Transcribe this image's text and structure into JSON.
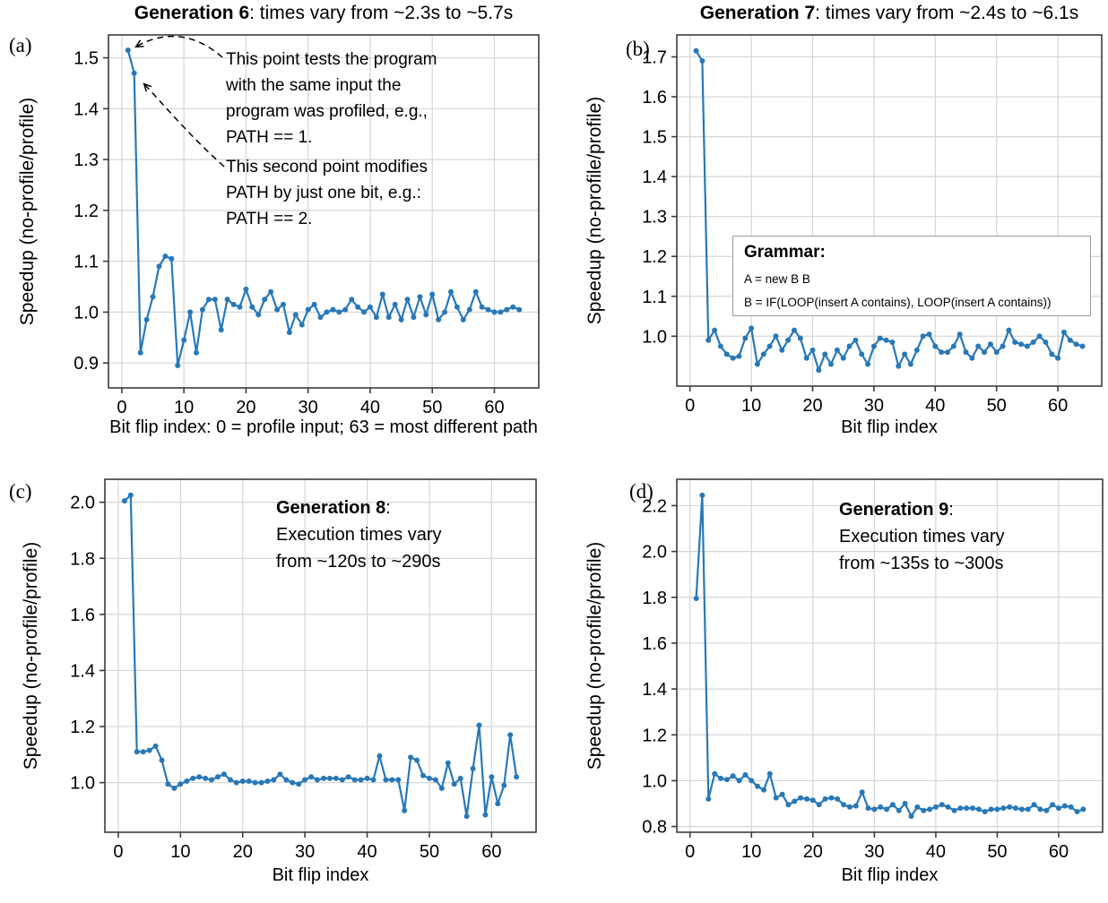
{
  "chart_data": [
    {
      "type": "line",
      "panel": "a",
      "corner_label": "(a)",
      "title_bold": "Generation 6",
      "title_tail": ": times vary from ~2.3s to ~5.7s",
      "xlabel": "Bit flip index: 0 = profile input; 63 = most different path",
      "ylabel": "Speedup (no-profile/profile)",
      "x_range": [
        1,
        64
      ],
      "values": [
        1.515,
        1.47,
        0.92,
        0.985,
        1.03,
        1.09,
        1.11,
        1.105,
        0.895,
        0.945,
        1.0,
        0.92,
        1.005,
        1.025,
        1.025,
        0.965,
        1.025,
        1.015,
        1.01,
        1.045,
        1.01,
        0.995,
        1.025,
        1.04,
        1.005,
        1.015,
        0.96,
        0.995,
        0.975,
        1.005,
        1.015,
        0.99,
        1.0,
        1.005,
        1.0,
        1.005,
        1.025,
        1.01,
        1.0,
        1.01,
        0.99,
        1.035,
        0.99,
        1.015,
        0.985,
        1.025,
        0.99,
        1.03,
        0.995,
        1.035,
        0.985,
        1.0,
        1.04,
        1.01,
        0.985,
        1.005,
        1.04,
        1.01,
        1.005,
        1.0,
        1.0,
        1.005,
        1.01,
        1.005
      ],
      "xlim": [
        -2.15,
        67.15
      ],
      "ylim": [
        0.851,
        1.545
      ],
      "xticks": [
        0,
        10,
        20,
        30,
        40,
        50,
        60
      ],
      "yticks": [
        0.9,
        1.0,
        1.1,
        1.2,
        1.3,
        1.4,
        1.5
      ],
      "grid": true,
      "line_color": "#2878b8",
      "annotations": [
        {
          "text": "This point tests the program\nwith the same input the\nprogram was profiled, e.g.,\nPATH == 1."
        },
        {
          "text": "This second point modifies\nPATH by just one bit, e.g.:\nPATH == 2."
        }
      ]
    },
    {
      "type": "line",
      "panel": "b",
      "corner_label": "(b)",
      "title_bold": "Generation 7",
      "title_tail": ": times vary from ~2.4s to ~6.1s",
      "xlabel": "Bit flip index",
      "ylabel": "Speedup (no-profile/profile)",
      "x_range": [
        1,
        64
      ],
      "values": [
        1.715,
        1.69,
        0.99,
        1.015,
        0.975,
        0.955,
        0.945,
        0.95,
        0.995,
        1.02,
        0.93,
        0.955,
        0.975,
        1.0,
        0.965,
        0.99,
        1.015,
        0.995,
        0.945,
        0.965,
        0.915,
        0.955,
        0.93,
        0.965,
        0.945,
        0.975,
        0.99,
        0.955,
        0.93,
        0.975,
        0.995,
        0.99,
        0.985,
        0.925,
        0.955,
        0.93,
        0.965,
        1.0,
        1.005,
        0.975,
        0.96,
        0.96,
        0.975,
        1.005,
        0.96,
        0.945,
        0.975,
        0.96,
        0.98,
        0.96,
        0.975,
        1.015,
        0.985,
        0.98,
        0.975,
        0.985,
        1.0,
        0.985,
        0.955,
        0.945,
        1.01,
        0.99,
        0.98,
        0.975
      ],
      "xlim": [
        -2.15,
        67.15
      ],
      "ylim": [
        0.875,
        1.755
      ],
      "xticks": [
        0,
        10,
        20,
        30,
        40,
        50,
        60
      ],
      "yticks": [
        1.0,
        1.1,
        1.2,
        1.3,
        1.4,
        1.5,
        1.6,
        1.7
      ],
      "grid": true,
      "line_color": "#2878b8",
      "grammar": {
        "heading": "Grammar:",
        "rules": [
          "A = new B B",
          "B = IF(LOOP(insert A contains), LOOP(insert A contains))"
        ]
      }
    },
    {
      "type": "line",
      "panel": "c",
      "corner_label": "(c)",
      "xlabel": "Bit flip index",
      "ylabel": "Speedup (no-profile/profile)",
      "x_range": [
        1,
        64
      ],
      "values": [
        2.005,
        2.025,
        1.11,
        1.11,
        1.115,
        1.13,
        1.08,
        0.995,
        0.98,
        0.995,
        1.005,
        1.015,
        1.02,
        1.015,
        1.01,
        1.02,
        1.03,
        1.01,
        1.0,
        1.005,
        1.005,
        1.0,
        1.0,
        1.005,
        1.01,
        1.03,
        1.01,
        1.0,
        0.995,
        1.01,
        1.02,
        1.01,
        1.015,
        1.015,
        1.015,
        1.01,
        1.02,
        1.01,
        1.01,
        1.015,
        1.01,
        1.095,
        1.01,
        1.01,
        1.01,
        0.9,
        1.09,
        1.08,
        1.025,
        1.015,
        1.01,
        0.98,
        1.07,
        0.995,
        1.015,
        0.88,
        1.05,
        1.205,
        0.885,
        1.02,
        0.925,
        0.99,
        1.17,
        1.02
      ],
      "xlim": [
        -2.15,
        67.15
      ],
      "ylim": [
        0.823,
        2.082
      ],
      "xticks": [
        0,
        10,
        20,
        30,
        40,
        50,
        60
      ],
      "yticks": [
        1.0,
        1.2,
        1.4,
        1.6,
        1.8,
        2.0
      ],
      "grid": true,
      "line_color": "#2878b8",
      "note": {
        "heading_bold": "Generation 8",
        "heading_tail": ":",
        "body": "Execution times vary\nfrom ~120s to ~290s"
      }
    },
    {
      "type": "line",
      "panel": "d",
      "corner_label": "(d)",
      "xlabel": "Bit flip index",
      "ylabel": "Speedup (no-profile/profile)",
      "x_range": [
        1,
        64
      ],
      "values": [
        1.795,
        2.245,
        0.92,
        1.03,
        1.01,
        1.005,
        1.02,
        1.0,
        1.025,
        1.0,
        0.975,
        0.96,
        1.03,
        0.925,
        0.94,
        0.895,
        0.91,
        0.925,
        0.92,
        0.915,
        0.895,
        0.92,
        0.925,
        0.92,
        0.895,
        0.885,
        0.89,
        0.95,
        0.88,
        0.875,
        0.885,
        0.875,
        0.895,
        0.87,
        0.9,
        0.845,
        0.885,
        0.87,
        0.875,
        0.885,
        0.895,
        0.885,
        0.87,
        0.88,
        0.88,
        0.88,
        0.875,
        0.865,
        0.875,
        0.875,
        0.88,
        0.885,
        0.88,
        0.875,
        0.875,
        0.895,
        0.875,
        0.87,
        0.895,
        0.88,
        0.89,
        0.885,
        0.865,
        0.875
      ],
      "xlim": [
        -2.15,
        67.15
      ],
      "ylim": [
        0.775,
        2.315
      ],
      "xticks": [
        0,
        10,
        20,
        30,
        40,
        50,
        60
      ],
      "yticks": [
        0.8,
        1.0,
        1.2,
        1.4,
        1.6,
        1.8,
        2.0,
        2.2
      ],
      "grid": true,
      "line_color": "#2878b8",
      "note": {
        "heading_bold": "Generation 9",
        "heading_tail": ":",
        "body": "Execution times vary\nfrom ~135s to ~300s"
      }
    }
  ]
}
